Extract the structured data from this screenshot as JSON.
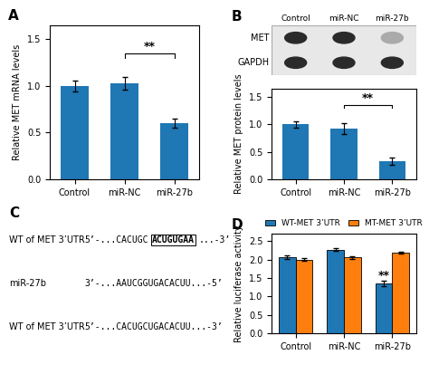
{
  "chart_data": [
    {
      "type": "bar",
      "title": "A",
      "categories": [
        "Control",
        "miR-NC",
        "miR-27b"
      ],
      "values": [
        1.0,
        1.03,
        0.6
      ],
      "errors": [
        0.06,
        0.07,
        0.05
      ],
      "ylabel": "Relative MET mRNA levels",
      "ylim": [
        0,
        1.65
      ],
      "yticks": [
        0.0,
        0.5,
        1.0,
        1.5
      ],
      "annotations": [
        {
          "text": "**",
          "x": [
            "miR-NC",
            "miR-27b"
          ],
          "y": 1.35
        }
      ]
    },
    {
      "type": "blot",
      "title": "B",
      "categories": [
        "Control",
        "miR-NC",
        "miR-27b"
      ],
      "series": [
        {
          "name": "MET",
          "colors": [
            "#2a2a2a",
            "#2a2a2a",
            "#aaaaaa"
          ]
        },
        {
          "name": "GAPDH",
          "colors": [
            "#2a2a2a",
            "#2a2a2a",
            "#2a2a2a"
          ]
        }
      ]
    },
    {
      "type": "bar",
      "categories": [
        "Control",
        "miR-NC",
        "miR-27b"
      ],
      "values": [
        1.0,
        0.93,
        0.33
      ],
      "errors": [
        0.06,
        0.1,
        0.06
      ],
      "ylabel": "Relative MET protein levels",
      "ylim": [
        0,
        1.65
      ],
      "yticks": [
        0.0,
        0.5,
        1.0,
        1.5
      ],
      "annotations": [
        {
          "text": "**",
          "x": [
            "miR-NC",
            "miR-27b"
          ],
          "y": 1.35
        }
      ]
    },
    {
      "type": "text",
      "title": "C",
      "annotations": [
        [
          "WT of MET 3’UTR",
          "5’-...CACUGC",
          "ACUGUGAA",
          "...-3’"
        ],
        [
          "miR-27b",
          "3’-...AAUCGGUGACACUU...-5’"
        ],
        [
          "WT of MET 3’UTR",
          "5’-...CACUGCUGACACUU...-3’"
        ]
      ]
    },
    {
      "type": "bar",
      "title": "D",
      "categories": [
        "Control",
        "miR-NC",
        "miR-27b"
      ],
      "series": [
        {
          "name": "WT-MET 3’UTR",
          "values": [
            2.07,
            2.27,
            1.35
          ],
          "errors": [
            0.05,
            0.04,
            0.07
          ]
        },
        {
          "name": "MT-MET 3’UTR",
          "values": [
            2.0,
            2.05,
            2.18
          ],
          "errors": [
            0.04,
            0.04,
            0.03
          ]
        }
      ],
      "ylabel": "Relative luciferase activity",
      "ylim": [
        0,
        2.7
      ],
      "yticks": [
        0.0,
        0.5,
        1.0,
        1.5,
        2.0,
        2.5
      ],
      "legend": "upper center",
      "annotations": [
        {
          "text": "**",
          "category": "miR-27b",
          "series": "WT-MET 3’UTR",
          "y": 1.55
        }
      ]
    }
  ]
}
